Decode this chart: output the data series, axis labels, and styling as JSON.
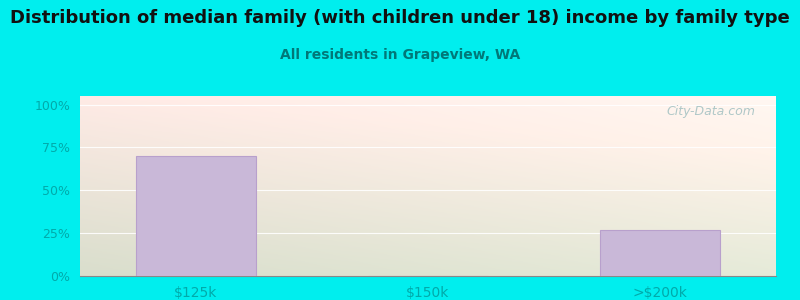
{
  "title": "Distribution of median family (with children under 18) income by family type",
  "subtitle": "All residents in Grapeview, WA",
  "categories": [
    "$125k",
    "$150k",
    ">$200k"
  ],
  "values": [
    70,
    0,
    27
  ],
  "bar_color": "#c9b8d8",
  "bar_edge_color": "#b8a0cc",
  "background_color": "#00eeee",
  "plot_bg_topleft": "#d0ece0",
  "plot_bg_topright": "#e8f4f0",
  "plot_bg_bottomleft": "#e0f0d0",
  "plot_bg_bottomright": "#ffffff",
  "title_fontsize": 13,
  "subtitle_fontsize": 10,
  "title_color": "#111111",
  "subtitle_color": "#007878",
  "tick_color": "#00aaaa",
  "yticks": [
    0,
    25,
    50,
    75,
    100
  ],
  "ylim": [
    0,
    105
  ],
  "watermark": "City-Data.com",
  "watermark_color": "#b0c8c8"
}
